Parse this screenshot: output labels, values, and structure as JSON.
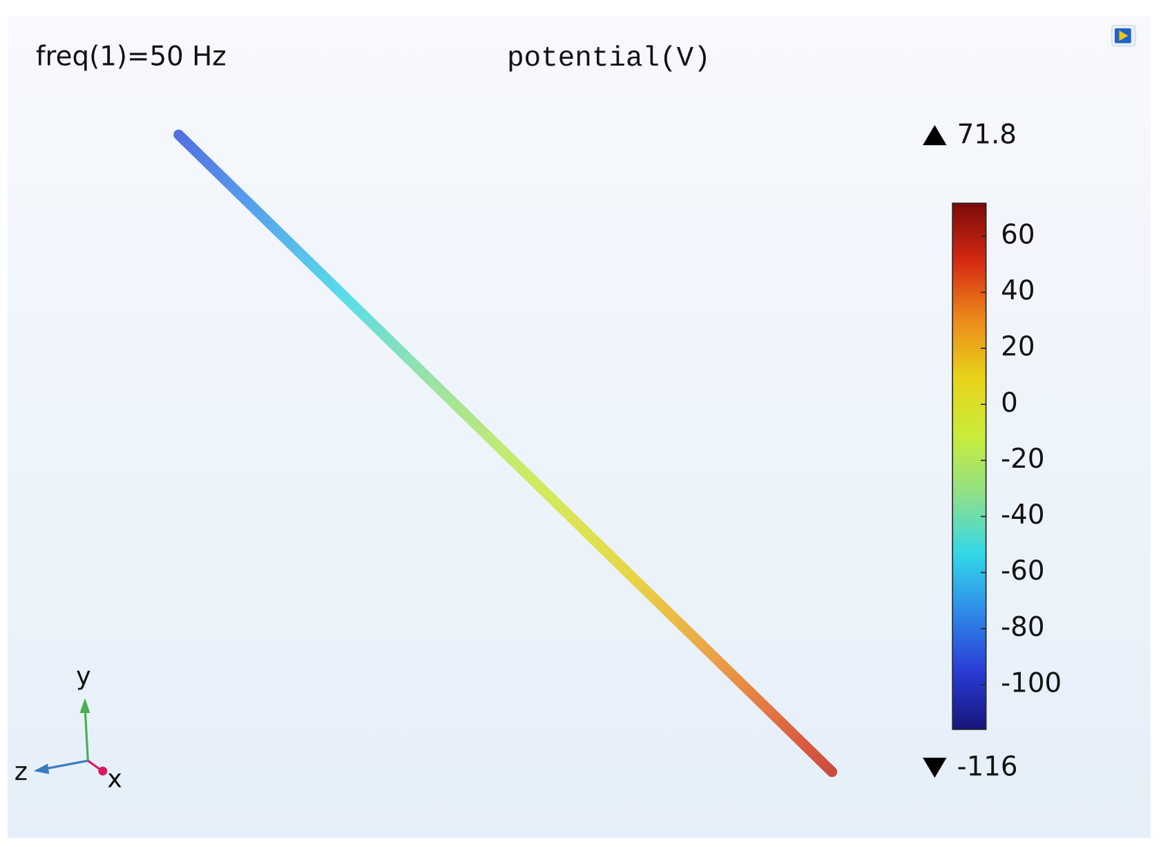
{
  "chart_data": {
    "type": "colormap",
    "title": "potential(V)",
    "annotation": "freq(1)=50 Hz",
    "axes_labels": {
      "y": "y",
      "z": "z",
      "x": "x"
    },
    "line": {
      "values": [
        -90,
        55
      ]
    },
    "colormap": [
      "#17157a",
      "#2a3cd6",
      "#2f8ae8",
      "#33d7e8",
      "#8de08a",
      "#c8ec3a",
      "#e8d41a",
      "#ec8a1c",
      "#d62a12",
      "#7a0a0a"
    ],
    "colorbar": {
      "ylim": [
        -116,
        71.8
      ],
      "yticks": [
        -100,
        -80,
        -60,
        -40,
        -20,
        0,
        20,
        40,
        60
      ]
    }
  }
}
